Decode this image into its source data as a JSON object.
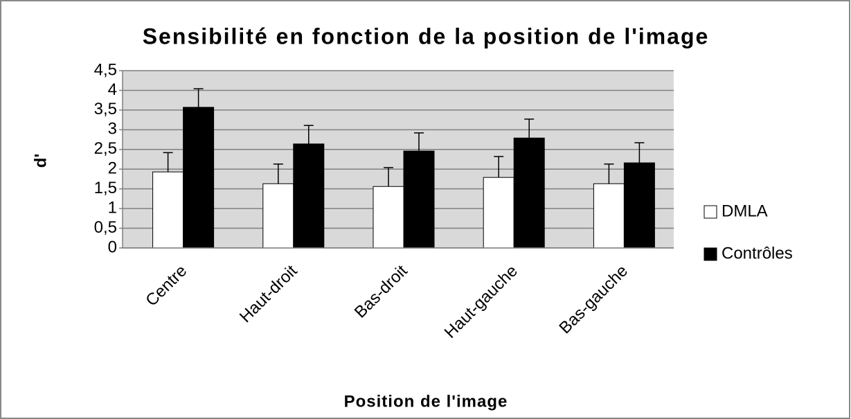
{
  "chart_data": {
    "type": "bar",
    "title": "Sensibilité en fonction de la position de l'image",
    "x_label": "Position de l'image",
    "y_label": "d'",
    "categories": [
      "Centre",
      "Haut-droit",
      "Bas-droit",
      "Haut-gauche",
      "Bas-gauche"
    ],
    "series": [
      {
        "name": "DMLA",
        "color": "#ffffff",
        "values": [
          1.93,
          1.63,
          1.56,
          1.79,
          1.63
        ],
        "errors": [
          0.49,
          0.5,
          0.48,
          0.53,
          0.5
        ]
      },
      {
        "name": "Contrôles",
        "color": "#000000",
        "values": [
          3.57,
          2.64,
          2.46,
          2.79,
          2.16
        ],
        "errors": [
          0.47,
          0.47,
          0.46,
          0.48,
          0.51
        ]
      }
    ],
    "ylim": [
      0,
      4.5
    ],
    "yticks": [
      0,
      {
        "value": 0.5,
        "label": "0,5"
      },
      1,
      {
        "value": 1.5,
        "label": "1,5"
      },
      2,
      {
        "value": 2.5,
        "label": "2,5"
      },
      3,
      {
        "value": 3.5,
        "label": "3,5"
      },
      4,
      {
        "value": 4.5,
        "label": "4,5"
      }
    ],
    "grid": true,
    "legend": "right"
  }
}
